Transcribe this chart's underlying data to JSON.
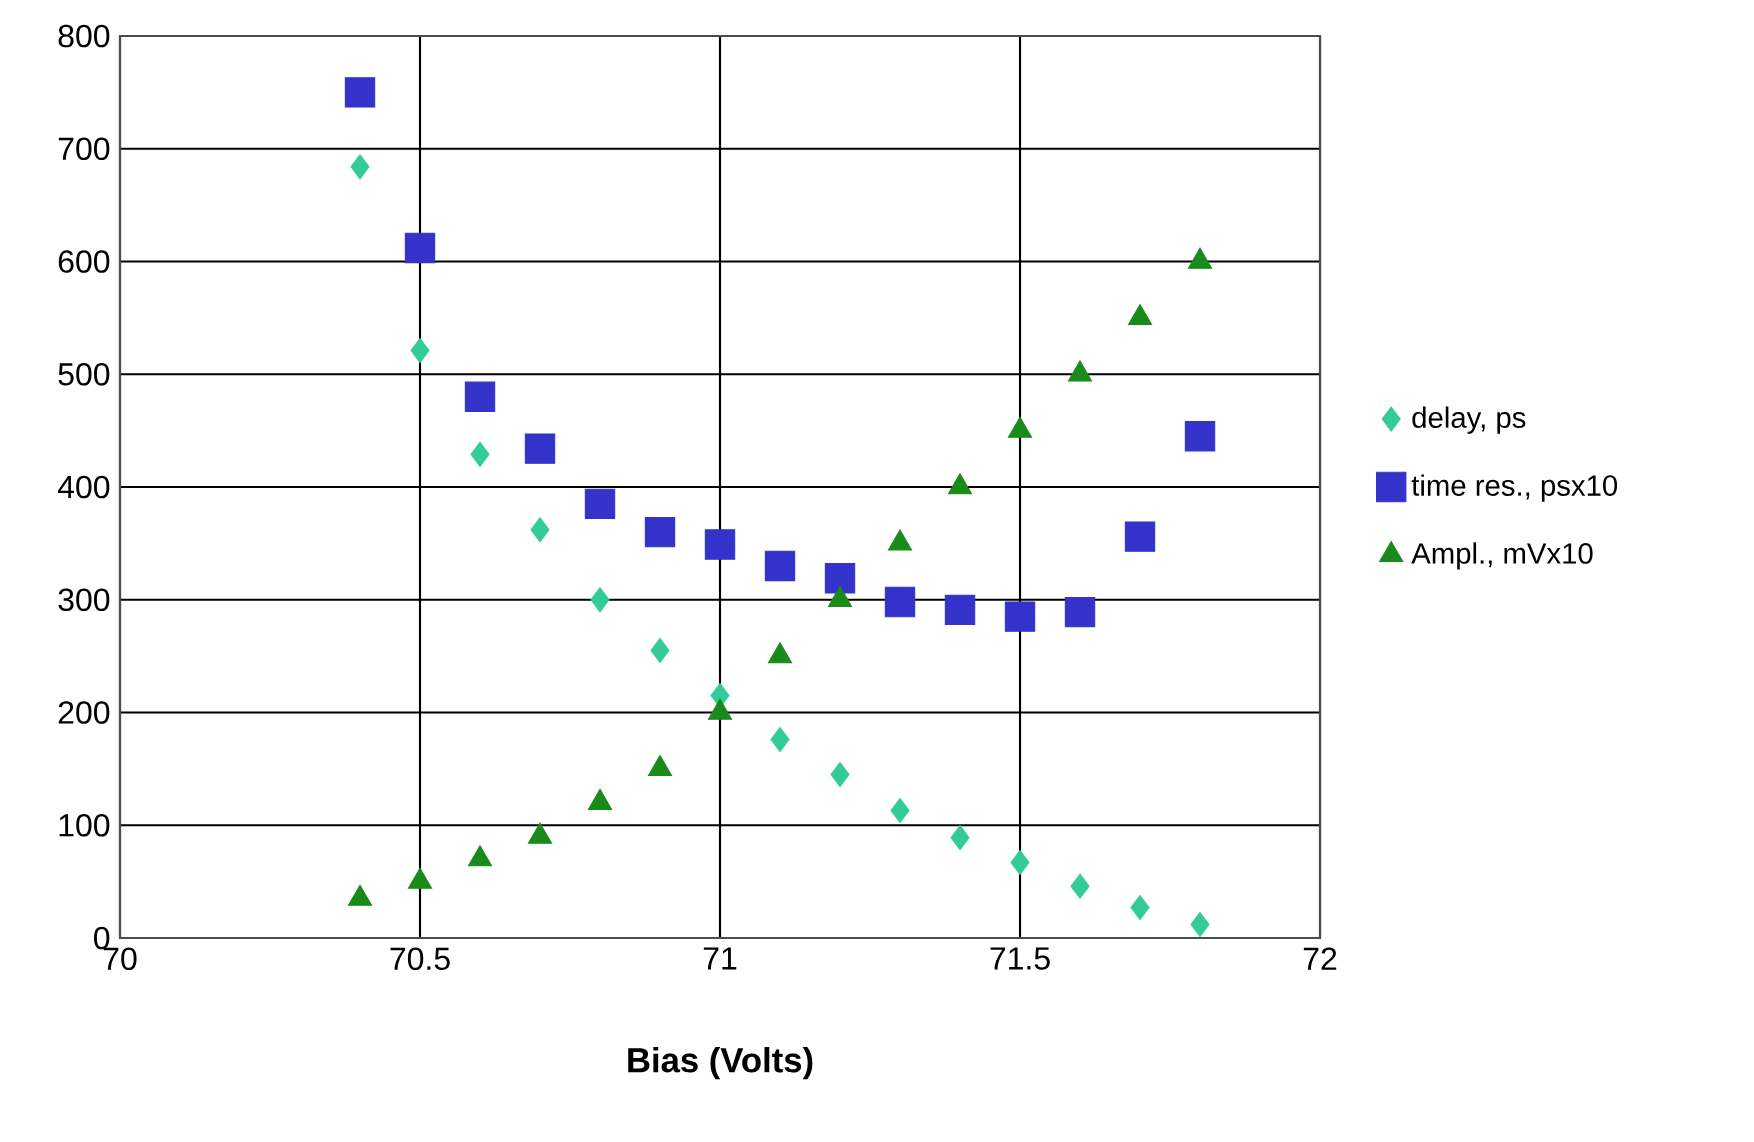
{
  "chart_data": {
    "type": "scatter",
    "xlabel": "Bias (Volts)",
    "xlim": [
      70,
      72
    ],
    "xticks": [
      70,
      70.5,
      71,
      71.5,
      72
    ],
    "ylim": [
      0,
      800
    ],
    "yticks": [
      0,
      100,
      200,
      300,
      400,
      500,
      600,
      700,
      800
    ],
    "grid": true,
    "legend": "right",
    "x": [
      70.4,
      70.5,
      70.6,
      70.7,
      70.8,
      70.9,
      71.0,
      71.1,
      71.2,
      71.3,
      71.4,
      71.5,
      71.6,
      71.7,
      71.8
    ],
    "series": [
      {
        "name": "delay, ps",
        "color": "#33cc99",
        "marker": "diamond",
        "values": [
          684,
          521,
          429,
          362,
          300,
          255,
          215,
          176,
          145,
          113,
          89,
          67,
          46,
          27,
          12
        ]
      },
      {
        "name": "time res., psx10",
        "color": "#3333cc",
        "marker": "square",
        "values": [
          750,
          612,
          480,
          434,
          385,
          360,
          349,
          330,
          319,
          298,
          291,
          285,
          289,
          356,
          445
        ]
      },
      {
        "name": "Ampl., mVx10",
        "color": "#1a8a1a",
        "marker": "triangle",
        "values": [
          35,
          50,
          70,
          90,
          120,
          150,
          200,
          250,
          300,
          350,
          400,
          450,
          500,
          550,
          600
        ]
      }
    ]
  }
}
